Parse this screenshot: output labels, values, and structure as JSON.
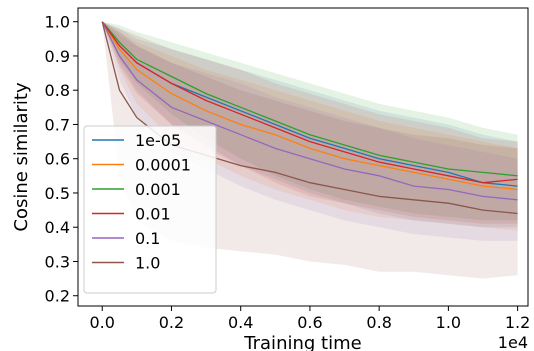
{
  "chart_data": {
    "type": "line",
    "title": "",
    "xlabel": "Training time",
    "ylabel": "Cosine similarity",
    "x_offset_text": "1e4",
    "xlim": [
      -0.07,
      1.23
    ],
    "ylim": [
      0.17,
      1.04
    ],
    "x_ticks": [
      0.0,
      0.2,
      0.4,
      0.6,
      0.8,
      1.0,
      1.2
    ],
    "x_tick_labels": [
      "0.0",
      "0.2",
      "0.4",
      "0.6",
      "0.8",
      "1.0",
      "1.2"
    ],
    "y_ticks": [
      0.2,
      0.3,
      0.4,
      0.5,
      0.6,
      0.7,
      0.8,
      0.9,
      1.0
    ],
    "y_tick_labels": [
      "0.2",
      "0.3",
      "0.4",
      "0.5",
      "0.6",
      "0.7",
      "0.8",
      "0.9",
      "1.0"
    ],
    "grid": false,
    "legend_position": "lower-left",
    "x": [
      0.0,
      0.05,
      0.1,
      0.2,
      0.3,
      0.4,
      0.5,
      0.6,
      0.7,
      0.8,
      0.9,
      1.0,
      1.1,
      1.2
    ],
    "series": [
      {
        "name": "1e-05",
        "color": "#1f77b4",
        "values": [
          1.0,
          0.93,
          0.88,
          0.82,
          0.78,
          0.74,
          0.7,
          0.66,
          0.63,
          0.6,
          0.58,
          0.56,
          0.53,
          0.52
        ],
        "band_low": [
          1.0,
          0.88,
          0.8,
          0.7,
          0.64,
          0.58,
          0.54,
          0.5,
          0.47,
          0.44,
          0.42,
          0.41,
          0.4,
          0.4
        ],
        "band_high": [
          1.0,
          0.98,
          0.95,
          0.92,
          0.89,
          0.86,
          0.83,
          0.8,
          0.77,
          0.74,
          0.72,
          0.7,
          0.67,
          0.65
        ]
      },
      {
        "name": "0.0001",
        "color": "#ff7f0e",
        "values": [
          1.0,
          0.92,
          0.86,
          0.79,
          0.74,
          0.7,
          0.67,
          0.63,
          0.6,
          0.58,
          0.56,
          0.54,
          0.52,
          0.51
        ],
        "band_low": [
          1.0,
          0.86,
          0.76,
          0.66,
          0.6,
          0.55,
          0.51,
          0.48,
          0.45,
          0.43,
          0.42,
          0.41,
          0.4,
          0.39
        ],
        "band_high": [
          1.0,
          0.97,
          0.94,
          0.9,
          0.86,
          0.83,
          0.8,
          0.77,
          0.74,
          0.71,
          0.69,
          0.67,
          0.65,
          0.63
        ]
      },
      {
        "name": "0.001",
        "color": "#2ca02c",
        "values": [
          1.0,
          0.94,
          0.89,
          0.84,
          0.79,
          0.75,
          0.71,
          0.67,
          0.64,
          0.61,
          0.59,
          0.57,
          0.56,
          0.55
        ],
        "band_low": [
          1.0,
          0.89,
          0.82,
          0.73,
          0.66,
          0.6,
          0.55,
          0.51,
          0.48,
          0.46,
          0.44,
          0.43,
          0.42,
          0.42
        ],
        "band_high": [
          1.0,
          0.99,
          0.97,
          0.94,
          0.91,
          0.88,
          0.85,
          0.82,
          0.79,
          0.76,
          0.74,
          0.72,
          0.69,
          0.67
        ]
      },
      {
        "name": "0.01",
        "color": "#d62728",
        "values": [
          1.0,
          0.93,
          0.88,
          0.82,
          0.77,
          0.73,
          0.69,
          0.65,
          0.62,
          0.59,
          0.57,
          0.55,
          0.53,
          0.54
        ],
        "band_low": [
          1.0,
          0.87,
          0.79,
          0.7,
          0.63,
          0.58,
          0.53,
          0.49,
          0.47,
          0.45,
          0.43,
          0.42,
          0.41,
          0.41
        ],
        "band_high": [
          1.0,
          0.98,
          0.96,
          0.92,
          0.89,
          0.86,
          0.82,
          0.79,
          0.76,
          0.73,
          0.71,
          0.69,
          0.66,
          0.65
        ]
      },
      {
        "name": "0.1",
        "color": "#9467bd",
        "values": [
          1.0,
          0.9,
          0.83,
          0.75,
          0.71,
          0.67,
          0.63,
          0.6,
          0.57,
          0.55,
          0.52,
          0.51,
          0.49,
          0.48
        ],
        "band_low": [
          1.0,
          0.83,
          0.72,
          0.62,
          0.57,
          0.52,
          0.48,
          0.45,
          0.42,
          0.4,
          0.38,
          0.37,
          0.36,
          0.36
        ],
        "band_high": [
          1.0,
          0.96,
          0.93,
          0.88,
          0.85,
          0.82,
          0.78,
          0.75,
          0.72,
          0.69,
          0.66,
          0.64,
          0.62,
          0.6
        ]
      },
      {
        "name": "1.0",
        "color": "#8c564b",
        "values": [
          1.0,
          0.8,
          0.72,
          0.64,
          0.61,
          0.58,
          0.56,
          0.53,
          0.51,
          0.49,
          0.48,
          0.47,
          0.45,
          0.44
        ],
        "band_low": [
          1.0,
          0.55,
          0.42,
          0.36,
          0.34,
          0.33,
          0.32,
          0.3,
          0.29,
          0.27,
          0.27,
          0.26,
          0.25,
          0.26
        ],
        "band_high": [
          1.0,
          0.97,
          0.93,
          0.88,
          0.84,
          0.8,
          0.77,
          0.74,
          0.71,
          0.69,
          0.67,
          0.66,
          0.64,
          0.63
        ]
      }
    ]
  }
}
